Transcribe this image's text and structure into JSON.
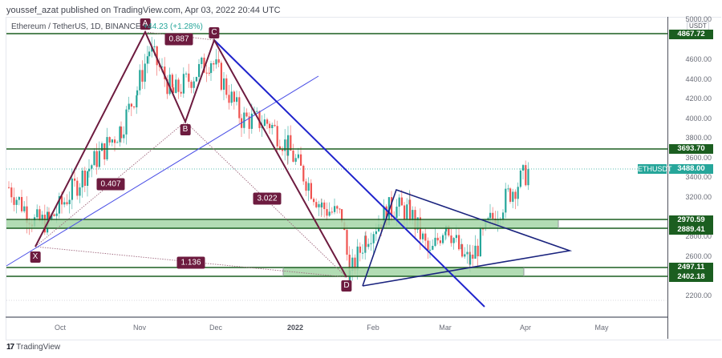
{
  "header": {
    "publisher_line": "youssef_azat published on TradingView.com, Apr 03, 2022 20:44 UTC"
  },
  "legend": {
    "symbol_line": "Ethereum / TetherUS, 1D, BINANCE",
    "change": "+44.23 (+1.28%)"
  },
  "price_axis": {
    "currency": "USDT",
    "ticks": [
      "5000.00",
      "4600.00",
      "4400.00",
      "4200.00",
      "4000.00",
      "3800.00",
      "3600.00",
      "3400.00",
      "3200.00",
      "2800.00",
      "2600.00",
      "2200.00"
    ],
    "level_labels": [
      "4867.72",
      "3693.70",
      "2970.59",
      "2889.41",
      "2497.11",
      "2402.18"
    ],
    "last_price": "3488.00",
    "symbol_tag": "ETHUSDT"
  },
  "time_axis": {
    "labels": [
      "Oct",
      "Nov",
      "Dec",
      "2022",
      "Feb",
      "Mar",
      "Apr",
      "May"
    ]
  },
  "pattern": {
    "points": [
      "X",
      "A",
      "B",
      "C",
      "D"
    ],
    "ratios": [
      "0.887",
      "0.407",
      "3.022",
      "1.136"
    ]
  },
  "footer": {
    "brand_mark": "17",
    "brand_name": "TradingView"
  },
  "colors": {
    "bull": "#26a69a",
    "bear": "#ef5350",
    "level_line": "#1b5e20",
    "zone_fill": "#a5d6a7",
    "pattern": "#6d1b3f",
    "trendline": "#1e22cc"
  },
  "chart_data": {
    "type": "candlestick",
    "title": "Ethereum / TetherUS, 1D, BINANCE",
    "symbol": "ETHUSDT",
    "timeframe": "1D",
    "last_price": 3488.0,
    "change": 44.23,
    "change_pct": 1.28,
    "x_range": [
      "Sep 2021",
      "May 2022"
    ],
    "x_ticks": [
      "Oct",
      "Nov",
      "Dec",
      "2022",
      "Feb",
      "Mar",
      "Apr",
      "May"
    ],
    "ylabel": "USDT",
    "ylim": [
      2100,
      5000
    ],
    "y_ticks": [
      2200,
      2600,
      2800,
      3200,
      3400,
      3600,
      3800,
      4000,
      4200,
      4400,
      4600,
      5000
    ],
    "horizontal_levels": [
      4867.72,
      3693.7,
      2970.59,
      2889.41,
      2497.11,
      2402.18
    ],
    "zones": [
      {
        "top": 2970.59,
        "bottom": 2889.41
      },
      {
        "top": 2497.11,
        "bottom": 2402.18
      }
    ],
    "harmonic_pattern": {
      "points": [
        {
          "label": "X",
          "date": "Sep 21 2021",
          "price": 2650
        },
        {
          "label": "A",
          "date": "Nov 10 2021",
          "price": 4868
        },
        {
          "label": "B",
          "date": "Nov 28 2021",
          "price": 3950
        },
        {
          "label": "C",
          "date": "Dec 01 2021",
          "price": 4780
        },
        {
          "label": "D",
          "date": "Jan 24 2022",
          "price": 2300
        }
      ],
      "ratios": [
        {
          "leg": "XB",
          "value": 0.407
        },
        {
          "leg": "AC",
          "value": 0.887
        },
        {
          "leg": "BD",
          "value": 3.022
        },
        {
          "leg": "XD",
          "value": 1.136
        }
      ]
    },
    "approx_closes": {
      "dates": [
        "Sep 10",
        "Sep 20",
        "Sep 30",
        "Oct 10",
        "Oct 20",
        "Oct 30",
        "Nov 10",
        "Nov 20",
        "Nov 30",
        "Dec 10",
        "Dec 20",
        "Dec 31",
        "Jan 10",
        "Jan 20",
        "Jan 24",
        "Feb 01",
        "Feb 08",
        "Feb 15",
        "Feb 24",
        "Mar 01",
        "Mar 10",
        "Mar 15",
        "Mar 20",
        "Mar 27",
        "Apr 03"
      ],
      "values": [
        3300,
        2950,
        2950,
        3500,
        3900,
        4300,
        4700,
        4250,
        4600,
        4000,
        3950,
        3700,
        3100,
        3000,
        2400,
        2800,
        3100,
        3050,
        2600,
        2950,
        2600,
        2550,
        2950,
        3250,
        3488
      ]
    },
    "grid": true,
    "legend_position": "top-left"
  }
}
